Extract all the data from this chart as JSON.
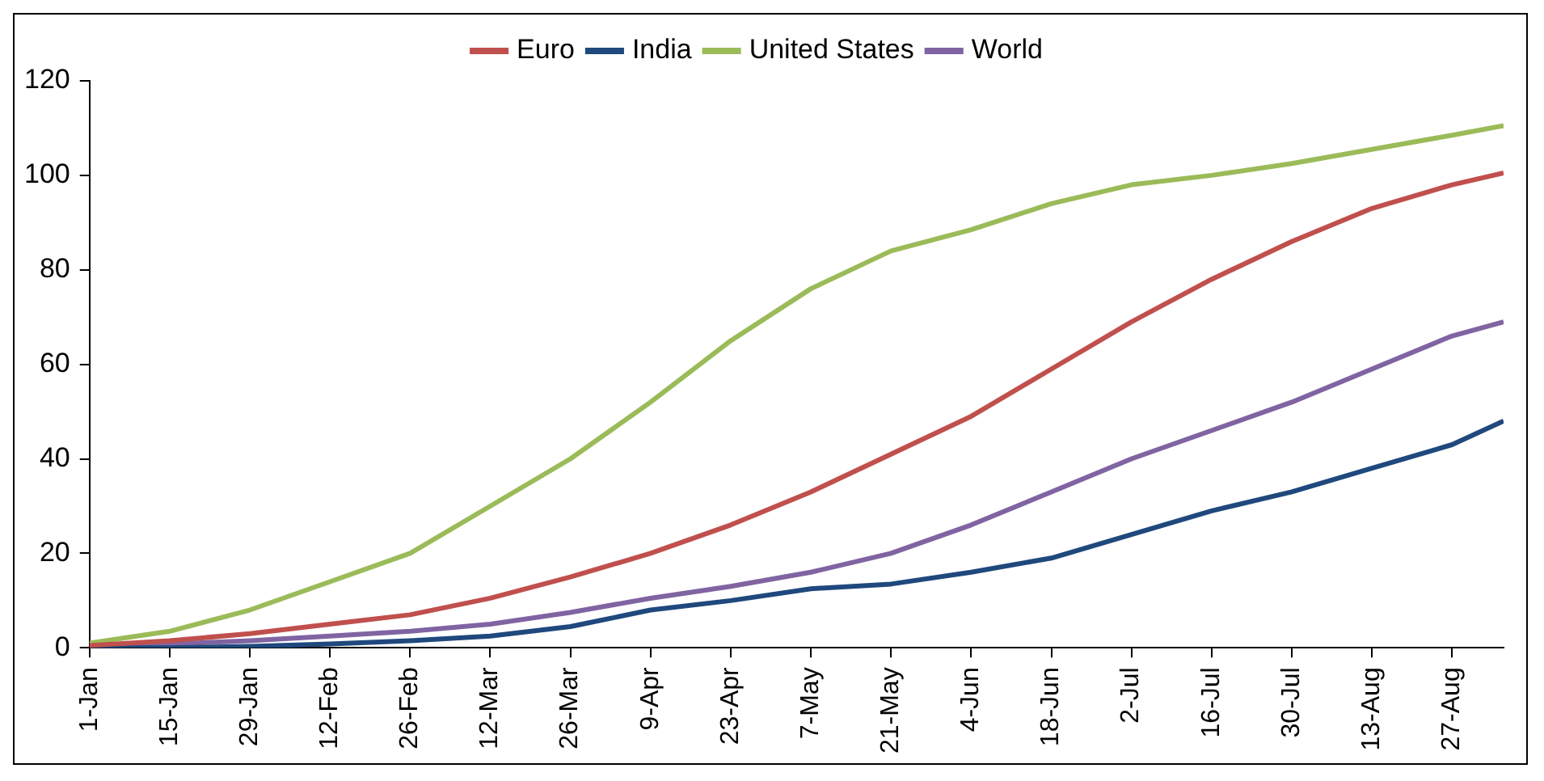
{
  "chart_data": {
    "type": "line",
    "x": [
      "--01-01",
      "--01-15",
      "--01-29",
      "--02-12",
      "--02-26",
      "--03-12",
      "--03-26",
      "--04-09",
      "--04-23",
      "--05-07",
      "--05-21",
      "--06-04",
      "--06-18",
      "--07-02",
      "--07-16",
      "--07-30",
      "--08-13",
      "--08-27",
      "--09-05"
    ],
    "series": [
      {
        "name": "Euro",
        "color": "#c0504d",
        "values": [
          0.5,
          1.5,
          3,
          5,
          7,
          10.5,
          15,
          20,
          26,
          33,
          41,
          49,
          59,
          69,
          78,
          86,
          93,
          98,
          100.5
        ]
      },
      {
        "name": "India",
        "color": "#1f497d",
        "values": [
          0,
          0,
          0.3,
          0.8,
          1.5,
          2.5,
          4.5,
          8,
          10,
          12.5,
          13.5,
          16,
          19,
          24,
          29,
          33,
          38,
          43,
          48
        ]
      },
      {
        "name": "United States",
        "color": "#9bbb59",
        "values": [
          1,
          3.5,
          8,
          14,
          20,
          30,
          40,
          52,
          65,
          76,
          84,
          88.5,
          94,
          98,
          100,
          102.5,
          105.5,
          108.5,
          110.5
        ]
      },
      {
        "name": "World",
        "color": "#8064a2",
        "values": [
          0.3,
          0.8,
          1.5,
          2.5,
          3.5,
          5,
          7.5,
          10.5,
          13,
          16,
          20,
          26,
          33,
          40,
          46,
          52,
          59,
          66,
          69
        ]
      }
    ],
    "xlim": [
      "--01-01",
      "--09-05"
    ],
    "xticks": [
      {
        "value": "--01-01",
        "label": "1-Jan"
      },
      {
        "value": "--01-15",
        "label": "15-Jan"
      },
      {
        "value": "--01-29",
        "label": "29-Jan"
      },
      {
        "value": "--02-12",
        "label": "12-Feb"
      },
      {
        "value": "--02-26",
        "label": "26-Feb"
      },
      {
        "value": "--03-12",
        "label": "12-Mar"
      },
      {
        "value": "--03-26",
        "label": "26-Mar"
      },
      {
        "value": "--04-09",
        "label": "9-Apr"
      },
      {
        "value": "--04-23",
        "label": "23-Apr"
      },
      {
        "value": "--05-07",
        "label": "7-May"
      },
      {
        "value": "--05-21",
        "label": "21-May"
      },
      {
        "value": "--06-04",
        "label": "4-Jun"
      },
      {
        "value": "--06-18",
        "label": "18-Jun"
      },
      {
        "value": "--07-02",
        "label": "2-Jul"
      },
      {
        "value": "--07-16",
        "label": "16-Jul"
      },
      {
        "value": "--07-30",
        "label": "30-Jul"
      },
      {
        "value": "--08-13",
        "label": "13-Aug"
      },
      {
        "value": "--08-27",
        "label": "27-Aug"
      }
    ],
    "ylim": [
      0,
      120
    ],
    "yticks": [
      0,
      20,
      40,
      60,
      80,
      100,
      120
    ],
    "grid": false,
    "legend": "top",
    "marker": "none",
    "line_style": "solid"
  }
}
